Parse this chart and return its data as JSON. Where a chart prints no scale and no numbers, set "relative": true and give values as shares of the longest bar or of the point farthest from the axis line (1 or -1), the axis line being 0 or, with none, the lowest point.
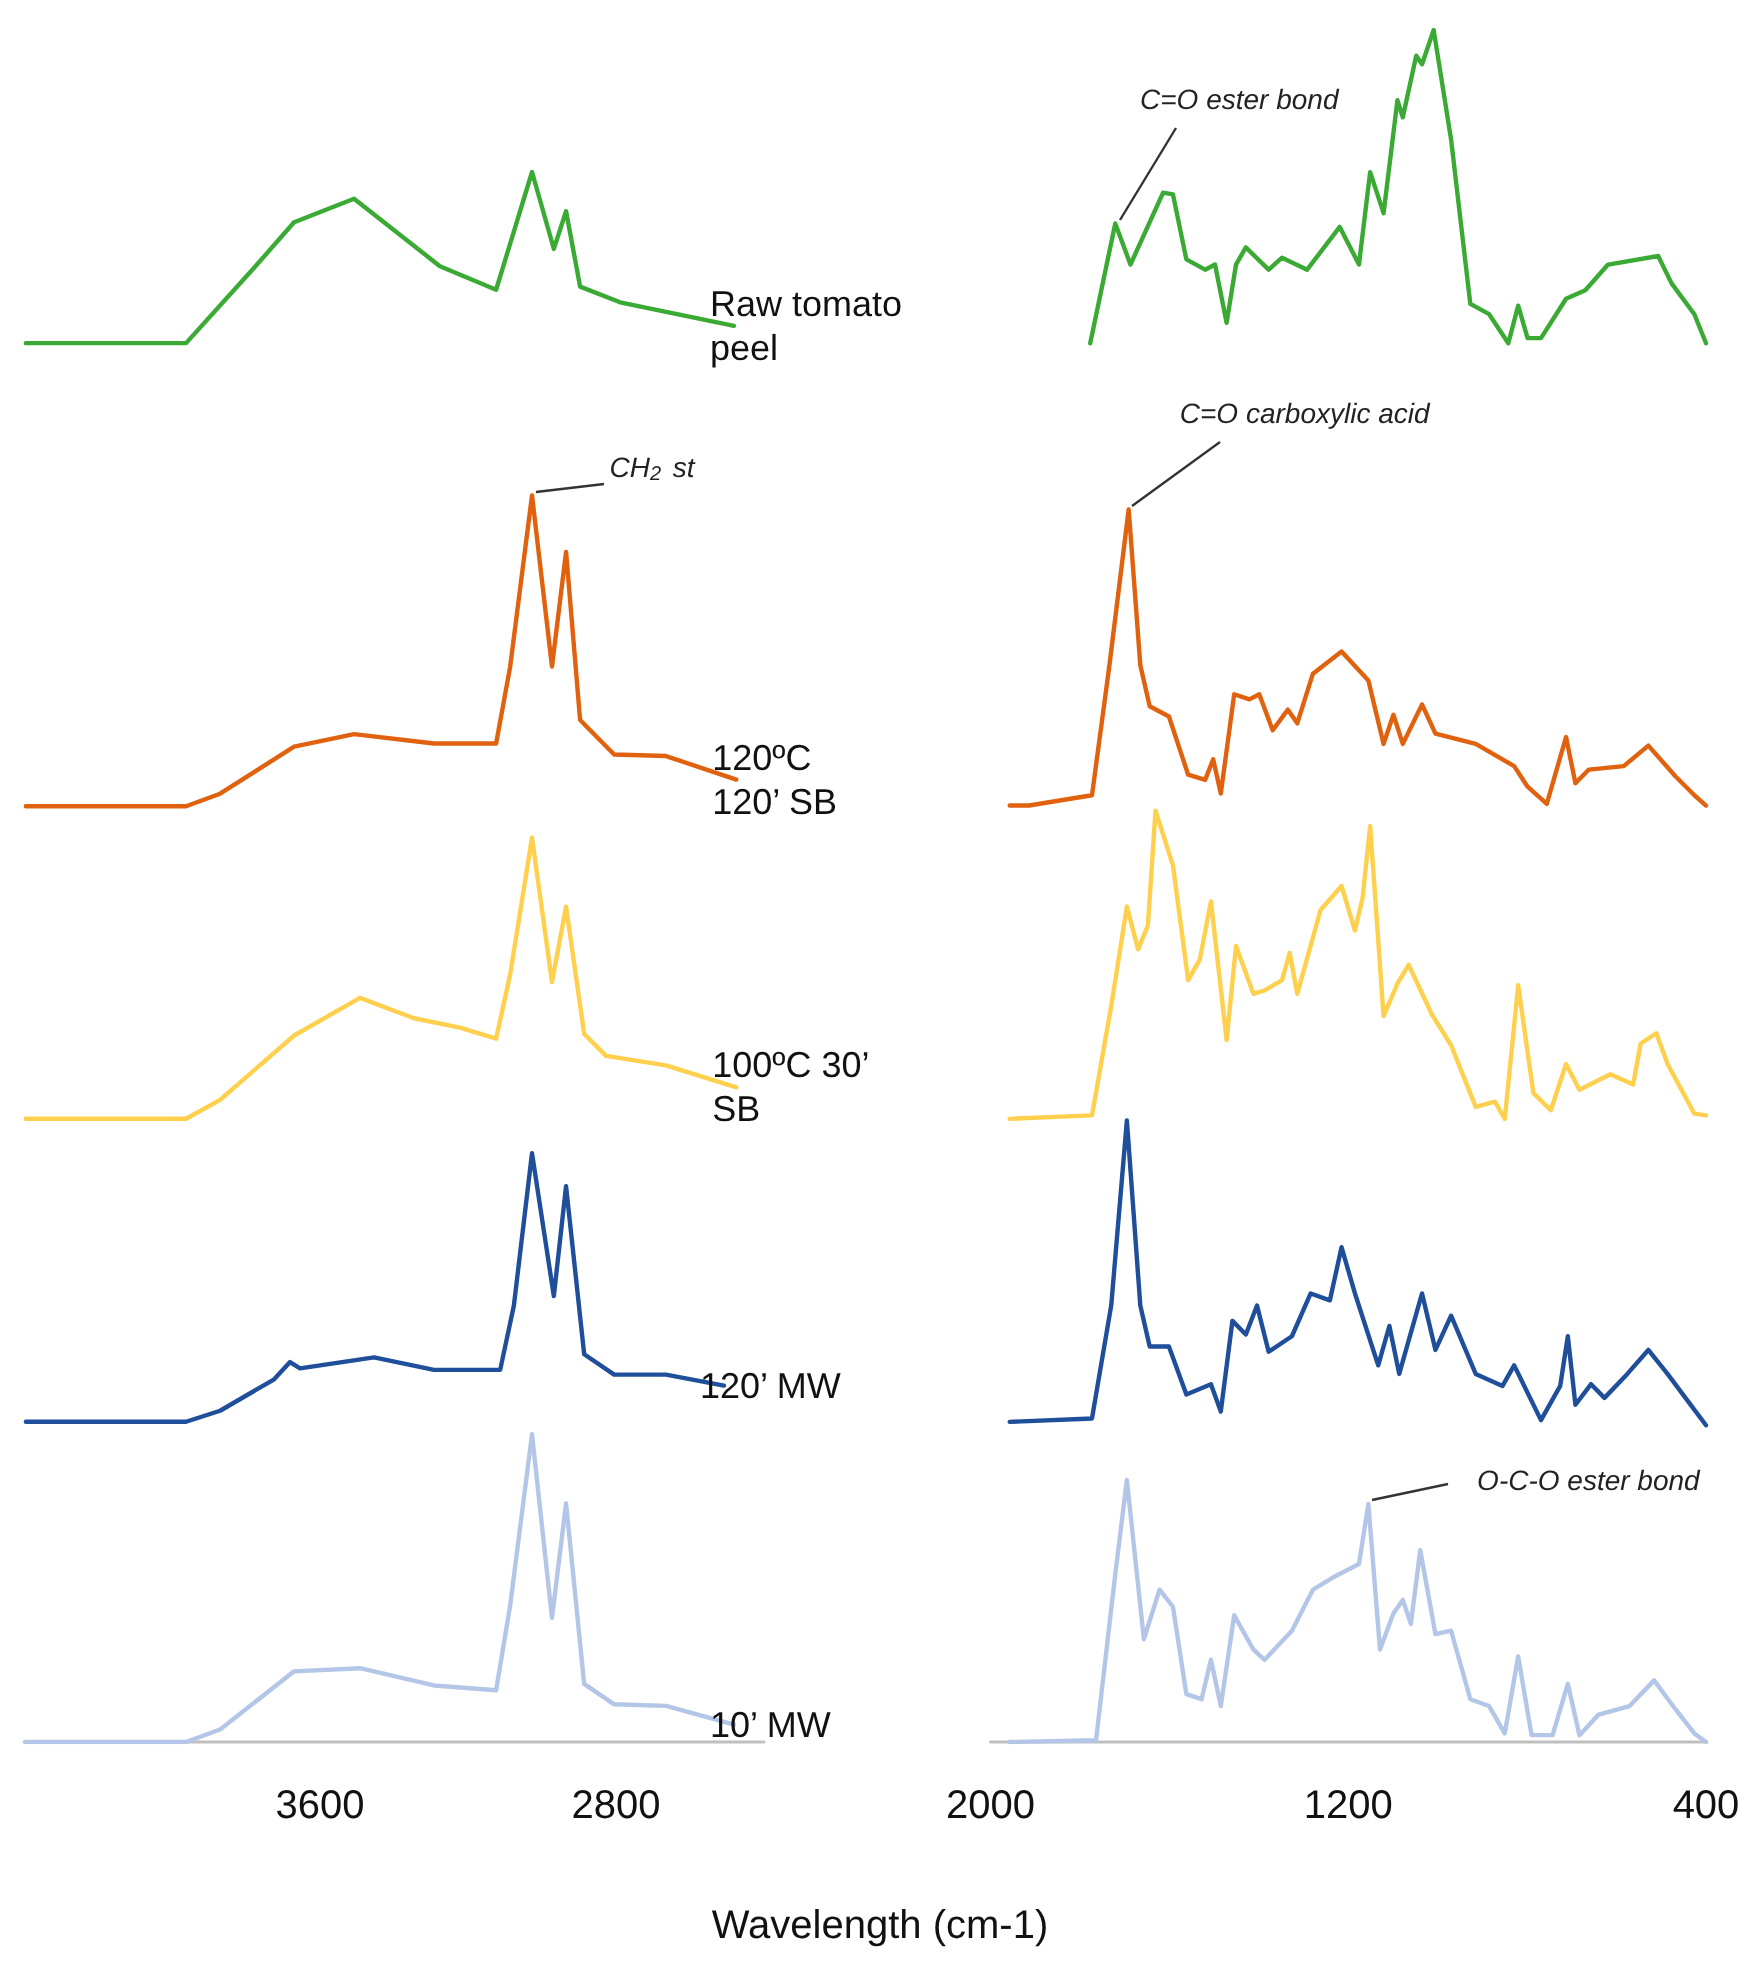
{
  "chart_data": [
    {
      "type": "line",
      "relative": true,
      "marker": "none",
      "legend": false,
      "grid": false,
      "xlabel": "Wavelength (cm-1)",
      "xlim": [
        4400,
        2400
      ],
      "xticks": [
        3600,
        2800
      ],
      "annotations": [
        {
          "text": "CH$_{2}$ st",
          "x": 3027,
          "y": 0.794
        }
      ],
      "series": [
        {
          "name": "Raw tomato peel",
          "color": "#3aaa35",
          "x": [
            4395,
            3962,
            3778,
            3670,
            3508,
            3276,
            3124,
            3027,
            2968,
            2935,
            2897,
            2789,
            2481
          ],
          "values": [
            0.891,
            0.891,
            0.939,
            0.968,
            0.983,
            0.94,
            0.925,
            1.0,
            0.951,
            0.975,
            0.927,
            0.917,
            0.902
          ]
        },
        {
          "name": "120ºC 120’ SB",
          "color": "#e0620f",
          "x": [
            4395,
            3962,
            3870,
            3670,
            3508,
            3292,
            3124,
            3086,
            3027,
            2973,
            2935,
            2897,
            2805,
            2665,
            2475
          ],
          "values": [
            0.596,
            0.596,
            0.604,
            0.634,
            0.642,
            0.636,
            0.636,
            0.685,
            0.794,
            0.685,
            0.758,
            0.651,
            0.629,
            0.628,
            0.613
          ]
        },
        {
          "name": "100ºC 30’ SB",
          "color": "#ffd04d",
          "x": [
            4395,
            3962,
            3870,
            3670,
            3492,
            3346,
            3222,
            3124,
            3086,
            3027,
            2973,
            2935,
            2886,
            2827,
            2665,
            2475
          ],
          "values": [
            0.397,
            0.397,
            0.409,
            0.45,
            0.474,
            0.461,
            0.455,
            0.448,
            0.489,
            0.576,
            0.484,
            0.532,
            0.451,
            0.437,
            0.431,
            0.417
          ]
        },
        {
          "name": "120’ MW",
          "color": "#1f4e9a",
          "x": [
            4395,
            3962,
            3870,
            3724,
            3681,
            3654,
            3454,
            3292,
            3113,
            3076,
            3027,
            2968,
            2935,
            2886,
            2805,
            2665,
            2508
          ],
          "values": [
            0.204,
            0.204,
            0.211,
            0.231,
            0.242,
            0.238,
            0.245,
            0.237,
            0.237,
            0.278,
            0.375,
            0.284,
            0.354,
            0.247,
            0.234,
            0.234,
            0.227
          ]
        },
        {
          "name": "10’ MW",
          "color": "#b4c6e7",
          "x": [
            4395,
            3962,
            3870,
            3670,
            3492,
            3292,
            3124,
            3086,
            3027,
            2973,
            2935,
            2886,
            2805,
            2665,
            2481
          ],
          "values": [
            0,
            0,
            0.008,
            0.045,
            0.047,
            0.036,
            0.033,
            0.087,
            0.196,
            0.079,
            0.152,
            0.037,
            0.024,
            0.023,
            0.011
          ]
        }
      ]
    },
    {
      "type": "line",
      "relative": true,
      "marker": "none",
      "legend": false,
      "grid": false,
      "xlim": [
        2000,
        400
      ],
      "xticks": [
        2000,
        1200,
        400
      ],
      "annotations": [
        {
          "text": "C=O ester bond",
          "x": 1721,
          "y": 0.887
        },
        {
          "text": "C=O carboxylic acid",
          "x": 1691,
          "y": 0.72
        },
        {
          "text": "O-C-O ester bond",
          "x": 1155,
          "y": 0.139
        }
      ],
      "series": [
        {
          "color": "#3aaa35",
          "x": [
            1777,
            1721,
            1687,
            1614,
            1592,
            1562,
            1520,
            1498,
            1472,
            1451,
            1429,
            1378,
            1348,
            1292,
            1219,
            1176,
            1151,
            1121,
            1090,
            1078,
            1048,
            1035,
            1009,
            970,
            927,
            885,
            842,
            820,
            799,
            769,
            713,
            670,
            619,
            507,
            477,
            426,
            400
          ],
          "values": [
            0.817,
            0.887,
            0.863,
            0.905,
            0.904,
            0.866,
            0.86,
            0.863,
            0.829,
            0.863,
            0.873,
            0.86,
            0.867,
            0.86,
            0.885,
            0.863,
            0.917,
            0.893,
            0.959,
            0.949,
            0.985,
            0.98,
            1.0,
            0.936,
            0.84,
            0.834,
            0.817,
            0.839,
            0.82,
            0.82,
            0.843,
            0.848,
            0.863,
            0.868,
            0.852,
            0.834,
            0.817
          ]
        },
        {
          "color": "#e0620f",
          "x": [
            1957,
            1914,
            1773,
            1734,
            1691,
            1665,
            1644,
            1601,
            1558,
            1520,
            1502,
            1485,
            1455,
            1421,
            1399,
            1369,
            1335,
            1314,
            1279,
            1215,
            1155,
            1121,
            1099,
            1078,
            1035,
            1005,
            915,
            829,
            799,
            756,
            713,
            692,
            662,
            584,
            529,
            468,
            426,
            400
          ],
          "values": [
            0.547,
            0.547,
            0.553,
            0.629,
            0.72,
            0.629,
            0.605,
            0.599,
            0.565,
            0.562,
            0.574,
            0.554,
            0.612,
            0.609,
            0.612,
            0.591,
            0.603,
            0.595,
            0.624,
            0.637,
            0.62,
            0.583,
            0.6,
            0.583,
            0.606,
            0.589,
            0.583,
            0.57,
            0.558,
            0.548,
            0.587,
            0.56,
            0.568,
            0.57,
            0.582,
            0.564,
            0.553,
            0.547
          ]
        },
        {
          "color": "#ffd04d",
          "x": [
            1957,
            1773,
            1730,
            1695,
            1670,
            1648,
            1631,
            1592,
            1558,
            1532,
            1507,
            1472,
            1451,
            1412,
            1387,
            1348,
            1331,
            1314,
            1262,
            1215,
            1185,
            1168,
            1151,
            1121,
            1090,
            1065,
            1013,
            970,
            915,
            872,
            850,
            820,
            786,
            747,
            713,
            683,
            614,
            563,
            546,
            511,
            486,
            426,
            400
          ],
          "values": [
            0.364,
            0.366,
            0.43,
            0.488,
            0.463,
            0.477,
            0.544,
            0.512,
            0.445,
            0.457,
            0.491,
            0.41,
            0.465,
            0.437,
            0.439,
            0.445,
            0.461,
            0.437,
            0.486,
            0.5,
            0.474,
            0.493,
            0.535,
            0.424,
            0.443,
            0.454,
            0.425,
            0.407,
            0.371,
            0.374,
            0.364,
            0.442,
            0.379,
            0.369,
            0.396,
            0.381,
            0.39,
            0.384,
            0.408,
            0.414,
            0.396,
            0.367,
            0.366
          ]
        },
        {
          "color": "#1f4e9a",
          "x": [
            1957,
            1773,
            1730,
            1695,
            1665,
            1644,
            1601,
            1562,
            1507,
            1485,
            1459,
            1429,
            1404,
            1378,
            1326,
            1284,
            1241,
            1215,
            1185,
            1133,
            1108,
            1086,
            1035,
            1005,
            970,
            915,
            855,
            829,
            769,
            726,
            709,
            692,
            657,
            627,
            576,
            529,
            486,
            443,
            400
          ],
          "values": [
            0.187,
            0.189,
            0.255,
            0.363,
            0.255,
            0.231,
            0.231,
            0.203,
            0.209,
            0.193,
            0.246,
            0.238,
            0.255,
            0.228,
            0.237,
            0.262,
            0.258,
            0.289,
            0.262,
            0.22,
            0.243,
            0.215,
            0.262,
            0.229,
            0.249,
            0.215,
            0.208,
            0.22,
            0.188,
            0.208,
            0.237,
            0.197,
            0.209,
            0.201,
            0.215,
            0.229,
            0.215,
            0.2,
            0.185
          ]
        },
        {
          "color": "#b4c6e7",
          "x": [
            1957,
            1764,
            1721,
            1695,
            1657,
            1622,
            1592,
            1562,
            1528,
            1507,
            1485,
            1455,
            1412,
            1387,
            1326,
            1279,
            1228,
            1176,
            1155,
            1129,
            1099,
            1078,
            1060,
            1039,
            1005,
            970,
            927,
            885,
            850,
            820,
            790,
            743,
            709,
            683,
            640,
            571,
            516,
            468,
            426,
            400
          ],
          "values": [
            0,
            0.001,
            0.098,
            0.153,
            0.06,
            0.089,
            0.079,
            0.028,
            0.025,
            0.048,
            0.021,
            0.074,
            0.054,
            0.048,
            0.065,
            0.089,
            0.097,
            0.104,
            0.139,
            0.054,
            0.075,
            0.083,
            0.069,
            0.112,
            0.063,
            0.065,
            0.025,
            0.021,
            0.005,
            0.05,
            0.004,
            0.004,
            0.034,
            0.004,
            0.016,
            0.021,
            0.036,
            0.019,
            0.005,
            0
          ]
        }
      ]
    }
  ]
}
